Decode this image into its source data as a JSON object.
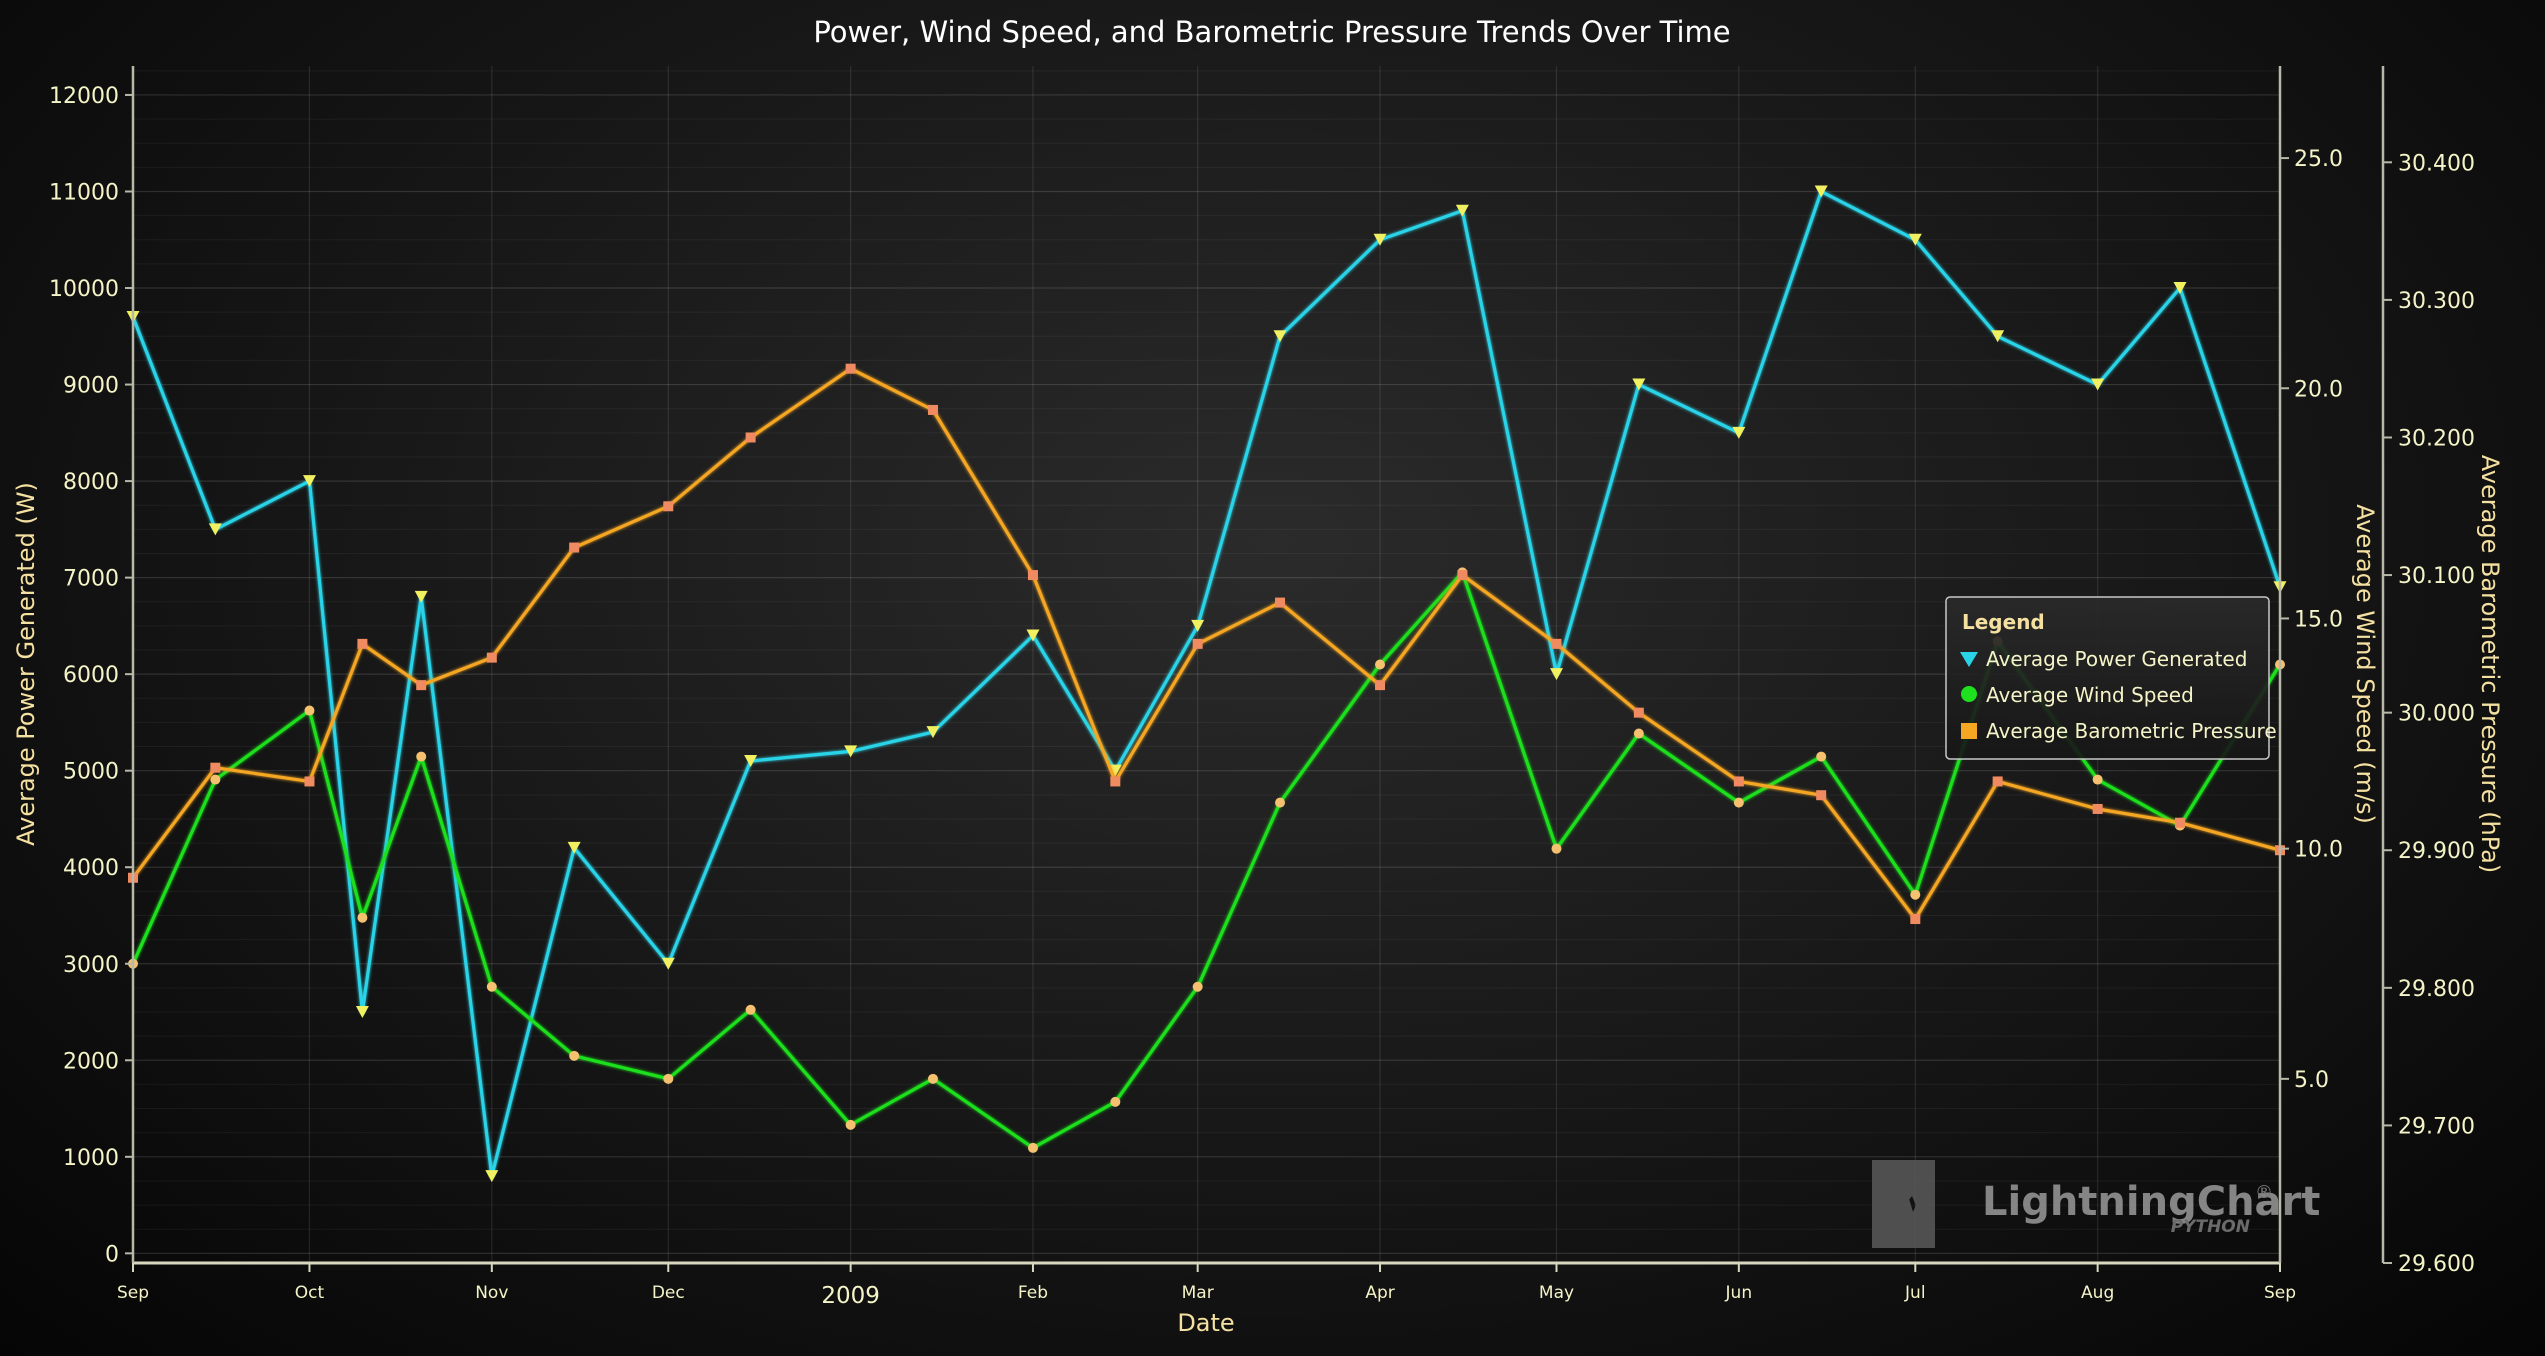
{
  "chart_data": {
    "type": "line",
    "title": "Power, Wind Speed, and Barometric Pressure Trends Over Time",
    "xlabel": "Date",
    "x_range": [
      "2008-09-01",
      "2009-09-01"
    ],
    "x_tick_labels": [
      "Sep",
      "Oct",
      "Nov",
      "Dec",
      "2009",
      "Feb",
      "Mar",
      "Apr",
      "May",
      "Jun",
      "Jul",
      "Aug",
      "Sep"
    ],
    "y_axes": {
      "power": {
        "label": "Average Power Generated (W)",
        "range": [
          -100,
          12300
        ],
        "ticks": [
          0,
          1000,
          2000,
          3000,
          4000,
          5000,
          6000,
          7000,
          8000,
          9000,
          10000,
          11000,
          12000
        ],
        "tick_labels": [
          "0",
          "1000",
          "2000",
          "3000",
          "4000",
          "5000",
          "6000",
          "7000",
          "8000",
          "9000",
          "10000",
          "11000",
          "12000"
        ]
      },
      "wind": {
        "label": "Average Wind Speed (m/s)",
        "range": [
          1.0,
          27.0
        ],
        "ticks": [
          5.0,
          10.0,
          15.0,
          20.0,
          25.0
        ],
        "tick_labels": [
          "5.0",
          "10.0",
          "15.0",
          "20.0",
          "25.0"
        ]
      },
      "pressure": {
        "label": "Average Barometric Pressure (hPa)",
        "range": [
          29.6,
          30.47
        ],
        "ticks": [
          29.6,
          29.7,
          29.8,
          29.9,
          30.0,
          30.1,
          30.2,
          30.3,
          30.4
        ],
        "tick_labels": [
          "29.600",
          "29.700",
          "29.800",
          "29.900",
          "30.000",
          "30.100",
          "30.200",
          "30.300",
          "30.400"
        ]
      }
    },
    "grid": true,
    "legend": {
      "title": "Legend",
      "position": "right",
      "entries": [
        "Average Power Generated",
        "Average Wind Speed",
        "Average Barometric Pressure"
      ]
    },
    "series": [
      {
        "name": "Average Power Generated",
        "axis": "power",
        "color": "#2ad4e8",
        "marker": "triangle",
        "x": [
          "2008-09-01",
          "2008-09-15",
          "2008-10-01",
          "2008-10-10",
          "2008-10-20",
          "2008-11-01",
          "2008-11-15",
          "2008-12-01",
          "2008-12-15",
          "2009-01-01",
          "2009-01-15",
          "2009-02-01",
          "2009-02-15",
          "2009-03-01",
          "2009-03-15",
          "2009-04-01",
          "2009-04-15",
          "2009-05-01",
          "2009-05-15",
          "2009-06-01",
          "2009-06-15",
          "2009-07-01",
          "2009-07-15",
          "2009-08-01",
          "2009-08-15",
          "2009-09-01"
        ],
        "values": [
          9700,
          7500,
          8000,
          2500,
          6800,
          800,
          4200,
          3000,
          5100,
          5200,
          5400,
          6400,
          5000,
          6500,
          9500,
          10500,
          10800,
          6000,
          9000,
          8500,
          11000,
          10500,
          9500,
          9000,
          10000,
          6900
        ]
      },
      {
        "name": "Average Wind Speed",
        "axis": "wind",
        "color": "#1ee01e",
        "marker": "circle",
        "x": [
          "2008-09-01",
          "2008-09-15",
          "2008-10-01",
          "2008-10-10",
          "2008-10-20",
          "2008-11-01",
          "2008-11-15",
          "2008-12-01",
          "2008-12-15",
          "2009-01-01",
          "2009-01-15",
          "2009-02-01",
          "2009-02-15",
          "2009-03-01",
          "2009-03-15",
          "2009-04-01",
          "2009-04-15",
          "2009-05-01",
          "2009-05-15",
          "2009-06-01",
          "2009-06-15",
          "2009-07-01",
          "2009-07-15",
          "2009-08-01",
          "2009-08-15",
          "2009-09-01"
        ],
        "values": [
          7.5,
          11.5,
          13.0,
          8.5,
          12.0,
          7.0,
          5.5,
          5.0,
          6.5,
          4.0,
          5.0,
          3.5,
          4.5,
          7.0,
          11.0,
          14.0,
          16.0,
          10.0,
          12.5,
          11.0,
          12.0,
          9.0,
          14.5,
          11.5,
          10.5,
          14.0
        ]
      },
      {
        "name": "Average Barometric Pressure",
        "axis": "pressure",
        "color": "#f5a623",
        "marker": "square",
        "x": [
          "2008-09-01",
          "2008-09-15",
          "2008-10-01",
          "2008-10-10",
          "2008-10-20",
          "2008-11-01",
          "2008-11-15",
          "2008-12-01",
          "2008-12-15",
          "2009-01-01",
          "2009-01-15",
          "2009-02-01",
          "2009-02-15",
          "2009-03-01",
          "2009-03-15",
          "2009-04-01",
          "2009-04-15",
          "2009-05-01",
          "2009-05-15",
          "2009-06-01",
          "2009-06-15",
          "2009-07-01",
          "2009-07-15",
          "2009-08-01",
          "2009-08-15",
          "2009-09-01"
        ],
        "values": [
          29.88,
          29.96,
          29.95,
          30.05,
          30.02,
          30.04,
          30.12,
          30.15,
          30.2,
          30.25,
          30.22,
          30.1,
          29.95,
          30.05,
          30.08,
          30.02,
          30.1,
          30.05,
          30.0,
          29.95,
          29.94,
          29.85,
          29.95,
          29.93,
          29.92,
          29.9
        ]
      }
    ]
  },
  "watermark": {
    "brand": "LightningChart",
    "trademark": "®",
    "sub": "PYTHON"
  }
}
